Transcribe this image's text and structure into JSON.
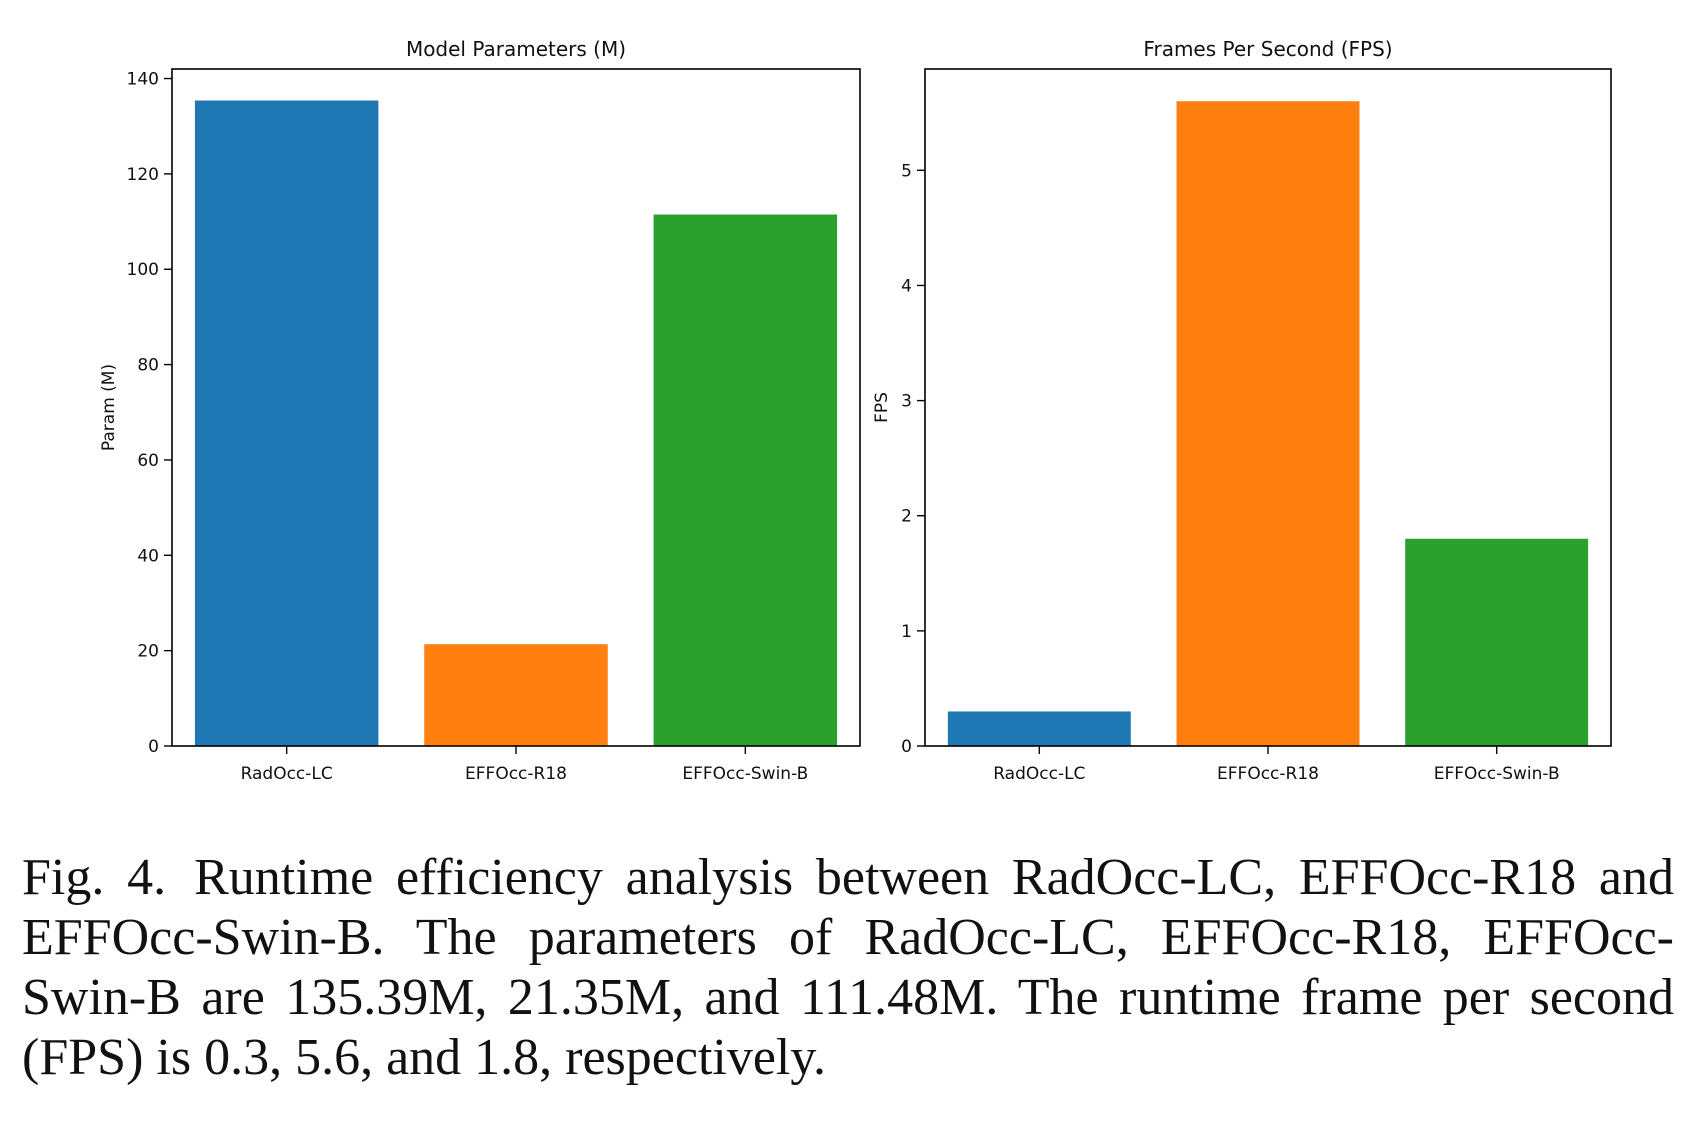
{
  "chart_data": [
    {
      "type": "bar",
      "title": "Model Parameters (M)",
      "xlabel": "",
      "ylabel": "Param (M)",
      "categories": [
        "RadOcc-LC",
        "EFFOcc-R18",
        "EFFOcc-Swin-B"
      ],
      "values": [
        135.39,
        21.35,
        111.48
      ],
      "colors": [
        "#1f77b4",
        "#ff7f0e",
        "#2ca02c"
      ],
      "ylim": [
        0,
        142
      ],
      "yticks": [
        0,
        20,
        40,
        60,
        80,
        100,
        120,
        140
      ],
      "grid": false,
      "legend": "none"
    },
    {
      "type": "bar",
      "title": "Frames Per Second (FPS)",
      "xlabel": "",
      "ylabel": "FPS",
      "categories": [
        "RadOcc-LC",
        "EFFOcc-R18",
        "EFFOcc-Swin-B"
      ],
      "values": [
        0.3,
        5.6,
        1.8
      ],
      "colors": [
        "#1f77b4",
        "#ff7f0e",
        "#2ca02c"
      ],
      "ylim": [
        0,
        5.88
      ],
      "yticks": [
        0,
        1,
        2,
        3,
        4,
        5
      ],
      "grid": false,
      "legend": "none"
    }
  ],
  "caption": {
    "label": "Fig. 4.",
    "text": "Runtime efficiency analysis between RadOcc-LC, EFFOcc-R18 and EFFOcc-Swin-B. The parameters of RadOcc-LC, EFFOcc-R18, EFFOcc-Swin-B are 135.39M, 21.35M, and 111.48M. The runtime frame per second (FPS) is 0.3, 5.6, and 1.8, respectively."
  }
}
